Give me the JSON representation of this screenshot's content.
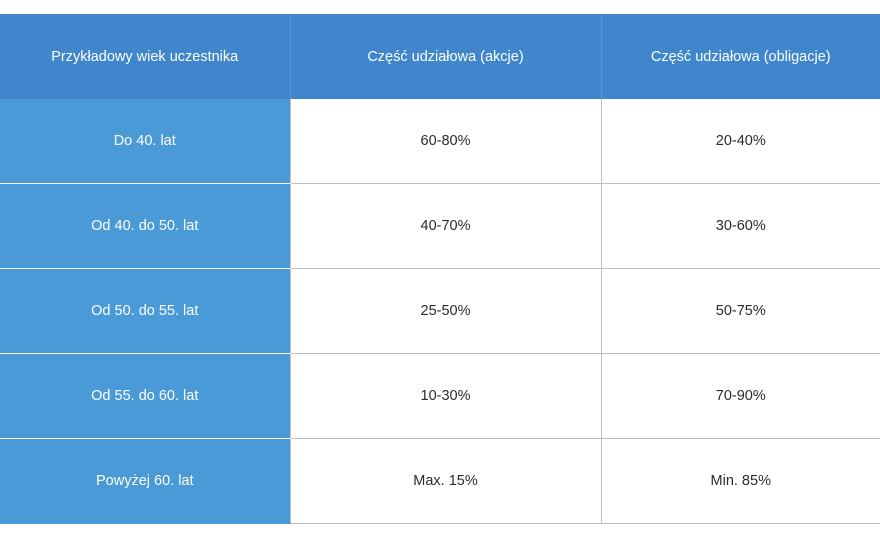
{
  "table": {
    "headers": [
      "Przykładowy wiek uczestnika",
      "Część udziałowa (akcje)",
      "Część udziałowa (obligacje)"
    ],
    "rows": [
      [
        "Do 40. lat",
        "60-80%",
        "20-40%"
      ],
      [
        "Od 40. do 50. lat",
        "40-70%",
        "30-60%"
      ],
      [
        "Od 50. do 55. lat",
        "25-50%",
        "50-75%"
      ],
      [
        "Od 55. do 60. lat",
        "10-30%",
        "70-90%"
      ],
      [
        "Powyżej 60. lat",
        "Max. 15%",
        "Min. 85%"
      ]
    ]
  },
  "colors": {
    "header_bg": "#3f86cc",
    "row_header_bg": "#4a9ad8",
    "grid_line": "#bfbfbf"
  }
}
